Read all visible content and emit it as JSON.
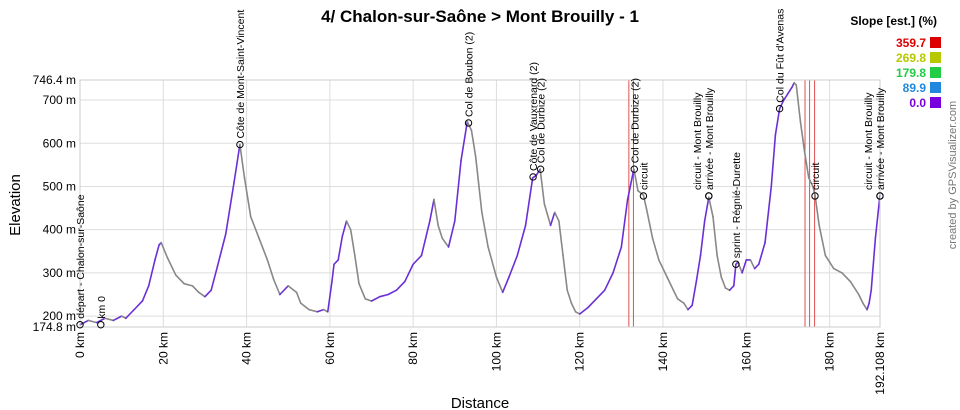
{
  "chart_data": {
    "type": "area",
    "title": "4/ Chalon-sur-Saône > Mont Brouilly - 1",
    "xlabel": "Distance",
    "ylabel": "Elevation",
    "xlim": [
      0,
      192.108
    ],
    "ylim": [
      174.8,
      746.4
    ],
    "x_ticks": [
      {
        "value": 0,
        "label": "0 km"
      },
      {
        "value": 20,
        "label": "20 km"
      },
      {
        "value": 40,
        "label": "40 km"
      },
      {
        "value": 60,
        "label": "60 km"
      },
      {
        "value": 80,
        "label": "80 km"
      },
      {
        "value": 100,
        "label": "100 km"
      },
      {
        "value": 120,
        "label": "120 km"
      },
      {
        "value": 140,
        "label": "140 km"
      },
      {
        "value": 160,
        "label": "160 km"
      },
      {
        "value": 180,
        "label": "180 km"
      },
      {
        "value": 192.108,
        "label": "192.108 km"
      }
    ],
    "y_ticks": [
      {
        "value": 174.8,
        "label": "174.8 m"
      },
      {
        "value": 200,
        "label": "200 m"
      },
      {
        "value": 300,
        "label": "300 m"
      },
      {
        "value": 400,
        "label": "400 m"
      },
      {
        "value": 500,
        "label": "500 m"
      },
      {
        "value": 600,
        "label": "600 m"
      },
      {
        "value": 700,
        "label": "700 m"
      },
      {
        "value": 746.4,
        "label": "746.4 m"
      }
    ],
    "profile": [
      [
        0,
        180
      ],
      [
        2,
        190
      ],
      [
        4,
        185
      ],
      [
        6,
        195
      ],
      [
        8,
        190
      ],
      [
        10,
        200
      ],
      [
        11,
        195
      ],
      [
        13,
        215
      ],
      [
        15,
        235
      ],
      [
        16.5,
        270
      ],
      [
        18,
        330
      ],
      [
        19,
        365
      ],
      [
        19.5,
        370
      ],
      [
        21,
        335
      ],
      [
        23,
        295
      ],
      [
        25,
        275
      ],
      [
        27,
        270
      ],
      [
        28.5,
        255
      ],
      [
        30,
        245
      ],
      [
        31.5,
        260
      ],
      [
        33,
        315
      ],
      [
        35,
        390
      ],
      [
        37,
        510
      ],
      [
        38.4,
        597
      ],
      [
        39.5,
        520
      ],
      [
        41,
        430
      ],
      [
        43,
        380
      ],
      [
        45,
        330
      ],
      [
        46.5,
        285
      ],
      [
        48,
        250
      ],
      [
        50,
        270
      ],
      [
        52,
        255
      ],
      [
        53,
        230
      ],
      [
        55,
        215
      ],
      [
        57,
        210
      ],
      [
        58.5,
        215
      ],
      [
        59.5,
        210
      ],
      [
        60.5,
        280
      ],
      [
        61,
        320
      ],
      [
        62,
        330
      ],
      [
        63,
        385
      ],
      [
        64,
        420
      ],
      [
        65,
        400
      ],
      [
        66,
        340
      ],
      [
        67,
        275
      ],
      [
        68.5,
        240
      ],
      [
        70,
        235
      ],
      [
        72,
        245
      ],
      [
        74,
        250
      ],
      [
        76,
        260
      ],
      [
        78,
        280
      ],
      [
        80,
        320
      ],
      [
        82,
        340
      ],
      [
        84,
        420
      ],
      [
        85,
        470
      ],
      [
        86,
        410
      ],
      [
        87,
        380
      ],
      [
        88.5,
        360
      ],
      [
        90,
        420
      ],
      [
        91.5,
        560
      ],
      [
        93,
        650
      ],
      [
        94,
        630
      ],
      [
        95,
        570
      ],
      [
        96.5,
        440
      ],
      [
        98,
        360
      ],
      [
        100,
        290
      ],
      [
        101.5,
        255
      ],
      [
        103,
        290
      ],
      [
        105,
        340
      ],
      [
        107,
        410
      ],
      [
        108.7,
        520
      ],
      [
        109.5,
        525
      ],
      [
        110.5,
        540
      ],
      [
        111.5,
        460
      ],
      [
        113,
        410
      ],
      [
        114,
        440
      ],
      [
        115,
        420
      ],
      [
        116,
        340
      ],
      [
        117,
        260
      ],
      [
        118,
        230
      ],
      [
        119,
        210
      ],
      [
        120,
        205
      ],
      [
        122,
        220
      ],
      [
        124,
        240
      ],
      [
        126,
        260
      ],
      [
        128,
        300
      ],
      [
        130,
        360
      ],
      [
        131.5,
        470
      ],
      [
        133,
        540
      ],
      [
        134,
        490
      ],
      [
        135.3,
        480
      ],
      [
        136,
        450
      ],
      [
        137.5,
        380
      ],
      [
        139,
        330
      ],
      [
        141,
        290
      ],
      [
        142.5,
        260
      ],
      [
        143.5,
        240
      ],
      [
        145,
        230
      ],
      [
        146,
        215
      ],
      [
        147,
        225
      ],
      [
        148,
        280
      ],
      [
        149,
        340
      ],
      [
        150,
        420
      ],
      [
        151,
        475
      ],
      [
        152,
        430
      ],
      [
        153,
        340
      ],
      [
        154,
        290
      ],
      [
        155,
        265
      ],
      [
        156,
        260
      ],
      [
        157,
        270
      ],
      [
        157.5,
        320
      ],
      [
        158,
        325
      ],
      [
        159,
        300
      ],
      [
        160,
        330
      ],
      [
        161,
        330
      ],
      [
        162,
        310
      ],
      [
        163,
        320
      ],
      [
        164.5,
        370
      ],
      [
        166,
        500
      ],
      [
        167,
        620
      ],
      [
        168,
        680
      ],
      [
        169,
        700
      ],
      [
        170,
        715
      ],
      [
        171,
        730
      ],
      [
        171.5,
        740
      ],
      [
        172,
        735
      ],
      [
        173,
        650
      ],
      [
        174,
        580
      ],
      [
        175,
        520
      ],
      [
        176,
        500
      ],
      [
        176.5,
        480
      ],
      [
        177.5,
        410
      ],
      [
        179,
        340
      ],
      [
        181,
        310
      ],
      [
        183,
        300
      ],
      [
        185,
        280
      ],
      [
        187,
        250
      ],
      [
        188,
        230
      ],
      [
        189,
        215
      ],
      [
        189.5,
        230
      ],
      [
        190,
        260
      ],
      [
        191,
        380
      ],
      [
        192.1,
        480
      ]
    ],
    "waypoints": [
      {
        "km": 0,
        "ele": 180,
        "label": "départ - Chalon-sur-Saône"
      },
      {
        "km": 5,
        "ele": 180,
        "label": "km 0"
      },
      {
        "km": 38.4,
        "ele": 597,
        "label": "Côte de Mont-Saint-Vincent"
      },
      {
        "km": 93.3,
        "ele": 647,
        "label": "Col de Boubon (2)"
      },
      {
        "km": 108.8,
        "ele": 522,
        "label": "Côte de Vauxrenard (2)"
      },
      {
        "km": 110.6,
        "ele": 540,
        "label": "Col de Durbize (2)"
      },
      {
        "km": 133.1,
        "ele": 540,
        "label": "Col de Durbize (2)"
      },
      {
        "km": 135.3,
        "ele": 478,
        "label": "circuit"
      },
      {
        "km": 151,
        "ele": 478,
        "label": "arrivée - Mont Brouilly"
      },
      {
        "km": 151,
        "ele": 478,
        "label": "circuit - Mont Brouilly"
      },
      {
        "km": 157.5,
        "ele": 320,
        "label": "sprint - Régnié-Durette"
      },
      {
        "km": 168,
        "ele": 680,
        "label": "Col du Fût d'Avenas"
      },
      {
        "km": 176.5,
        "ele": 478,
        "label": "circuit"
      },
      {
        "km": 192.1,
        "ele": 478,
        "label": "arrivée - Mont Brouilly"
      },
      {
        "km": 192.1,
        "ele": 478,
        "label": "circuit - Mont Brouilly"
      }
    ],
    "steep_markers_km": [
      131.8,
      132.9,
      174.1,
      175.2,
      176.4
    ],
    "legend": {
      "title": "Slope [est.] (%)",
      "position": "top-right",
      "items": [
        {
          "label": "359.7",
          "color": "#dd0000"
        },
        {
          "label": "269.8",
          "color": "#b8c800"
        },
        {
          "label": "179.8",
          "color": "#22cc44"
        },
        {
          "label": "89.9",
          "color": "#2288dd"
        },
        {
          "label": "0.0",
          "color": "#7700dd"
        }
      ]
    },
    "grid": true
  },
  "credit": "created by GPSVisualizer.com",
  "colors": {
    "line_flat": "#6a2fd6",
    "line_descent": "#888888",
    "steep_marker": "#e05050"
  }
}
